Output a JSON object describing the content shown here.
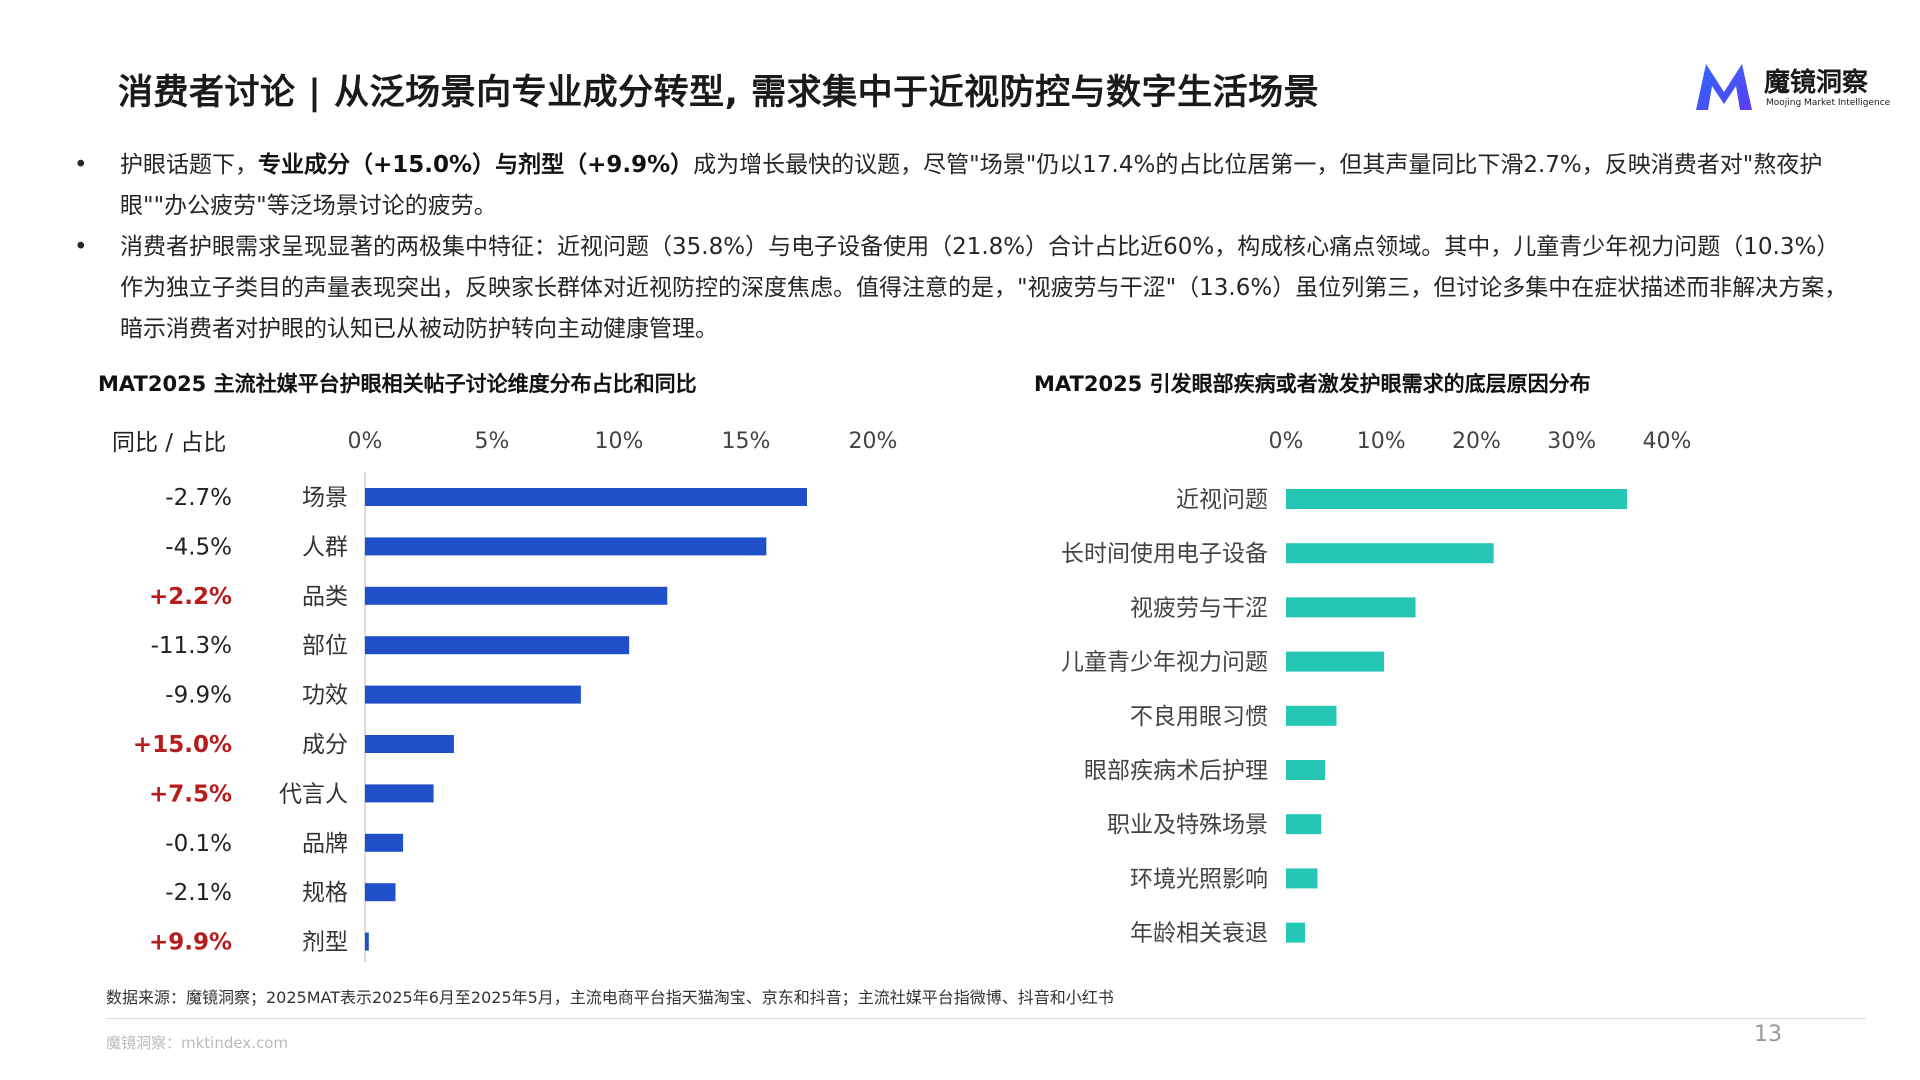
{
  "title": "消费者讨论 | 从泛场景向专业成分转型, 需求集中于近视防控与数字生活场景",
  "logo": {
    "name": "魔镜洞察",
    "tagline": "Moojing Market Intelligence"
  },
  "bullets": [
    {
      "dot": "•",
      "lead": "护眼话题下，",
      "bold": "专业成分（+15.0%）与剂型（+9.9%）",
      "rest": "成为增长最快的议题，尽管\"场景\"仍以17.4%的占比位居第一，但其声量同比下滑2.7%，反映消费者对\"熬夜护眼\"\"办公疲劳\"等泛场景讨论的疲劳。"
    },
    {
      "dot": "•",
      "lead": "消费者护眼需求呈现显著的两极集中特征：近视问题（35.8%）与电子设备使用（21.8%）合计占比近60%，构成核心痛点领域。其中，儿童青少年视力问题（10.3%）作为独立子类目的声量表现突出，反映家长群体对近视防控的深度焦虑。值得注意的是，\"视疲劳与干涩\"（13.6%）虽位列第三，但讨论多集中在症状描述而非解决方案，暗示消费者对护眼的认知已从被动防护转向主动健康管理。",
      "bold": "",
      "rest": ""
    }
  ],
  "chart_data": [
    {
      "type": "bar",
      "orientation": "horizontal",
      "title": "MAT2025 主流社媒平台护眼相关帖子讨论维度分布占比和同比",
      "yoy_header": "同比 / 占比",
      "categories": [
        "场景",
        "人群",
        "品类",
        "部位",
        "功效",
        "成分",
        "代言人",
        "品牌",
        "规格",
        "剂型"
      ],
      "values": [
        17.4,
        15.8,
        11.9,
        10.4,
        8.5,
        3.5,
        2.7,
        1.5,
        1.2,
        0.15
      ],
      "yoy": [
        "-2.7%",
        "-4.5%",
        "+2.2%",
        "-11.3%",
        "-9.9%",
        "+15.0%",
        "+7.5%",
        "-0.1%",
        "-2.1%",
        "+9.9%"
      ],
      "xlim": [
        0,
        20
      ],
      "ticks": [
        "0%",
        "5%",
        "10%",
        "15%",
        "20%"
      ],
      "bar_color": "#1f4fc9",
      "positive_color": "#b71c1c",
      "negative_color": "#222222"
    },
    {
      "type": "bar",
      "orientation": "horizontal",
      "title": "MAT2025 引发眼部疾病或者激发护眼需求的底层原因分布",
      "categories": [
        "近视问题",
        "长时间使用电子设备",
        "视疲劳与干涩",
        "儿童青少年视力问题",
        "不良用眼习惯",
        "眼部疾病术后护理",
        "职业及特殊场景",
        "环境光照影响",
        "年龄相关衰退"
      ],
      "values": [
        35.8,
        21.8,
        13.6,
        10.3,
        5.3,
        4.1,
        3.7,
        3.3,
        2.0
      ],
      "xlim": [
        0,
        40
      ],
      "ticks": [
        "0%",
        "10%",
        "20%",
        "30%",
        "40%"
      ],
      "bar_color": "#26c6b4"
    }
  ],
  "footnote": "数据来源：魔镜洞察；2025MAT表示2025年6月至2025年5月，主流电商平台指天猫淘宝、京东和抖音；主流社媒平台指微博、抖音和小红书",
  "footer_site": "魔镜洞察：mktindex.com",
  "page_number": "13"
}
